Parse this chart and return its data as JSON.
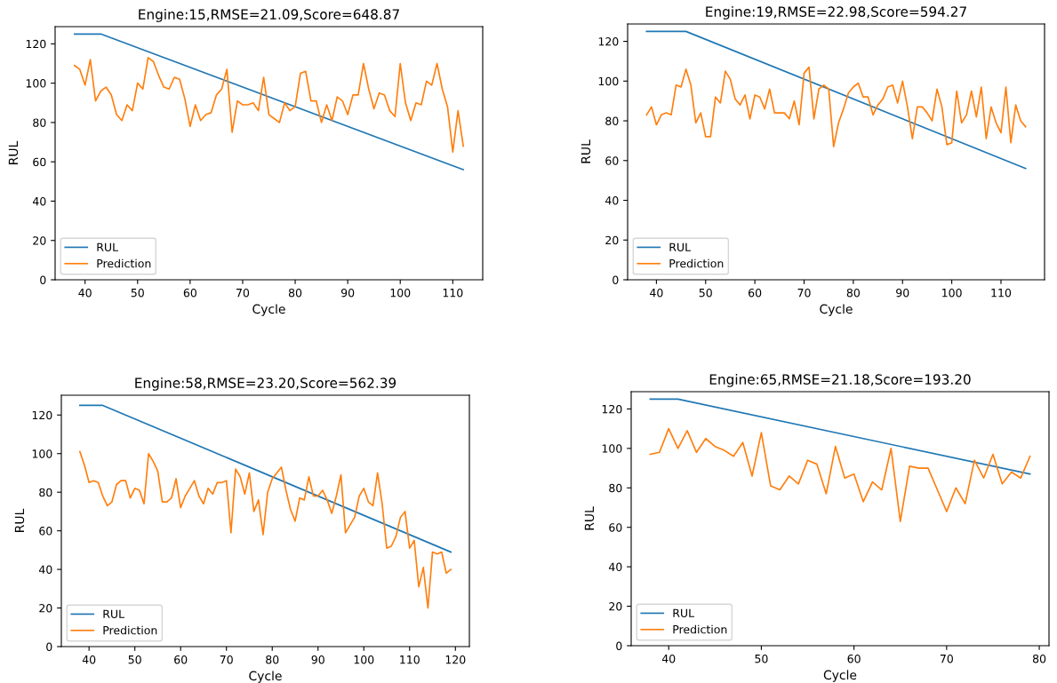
{
  "chart_data": [
    {
      "type": "line",
      "title": "Engine:15,RMSE=21.09,Score=648.87",
      "xlabel": "Cycle",
      "ylabel": "RUL",
      "xlim": [
        34.3,
        115.7
      ],
      "xticks": [
        40,
        50,
        60,
        70,
        80,
        90,
        100,
        110
      ],
      "ylim": [
        0,
        128.75
      ],
      "yticks": [
        0,
        20,
        40,
        60,
        80,
        100,
        120
      ],
      "legend": "bottom left",
      "grid": false,
      "series": [
        {
          "name": "RUL",
          "color": "#1f77b4",
          "x": [
            38,
            43,
            112
          ],
          "values": [
            125,
            125,
            56
          ]
        },
        {
          "name": "Prediction",
          "color": "#ff7f0e",
          "x": [
            38,
            39,
            40,
            41,
            42,
            43,
            44,
            45,
            46,
            47,
            48,
            49,
            50,
            51,
            52,
            53,
            54,
            55,
            56,
            57,
            58,
            59,
            60,
            61,
            62,
            63,
            64,
            65,
            66,
            67,
            68,
            69,
            70,
            71,
            72,
            73,
            74,
            75,
            76,
            77,
            78,
            79,
            80,
            81,
            82,
            83,
            84,
            85,
            86,
            87,
            88,
            89,
            90,
            91,
            92,
            93,
            94,
            95,
            96,
            97,
            98,
            99,
            100,
            101,
            102,
            103,
            104,
            105,
            106,
            107,
            108,
            109,
            110,
            111,
            112
          ],
          "values": [
            109,
            107,
            99,
            112,
            91,
            96,
            98,
            94,
            84,
            81,
            89,
            86,
            100,
            97,
            113,
            111,
            104,
            98,
            97,
            103,
            102,
            92,
            78,
            89,
            81,
            84,
            85,
            94,
            97,
            107,
            75,
            91,
            89,
            89,
            90,
            86,
            103,
            84,
            82,
            80,
            90,
            86,
            88,
            105,
            106,
            91,
            91,
            80,
            89,
            81,
            93,
            91,
            84,
            94,
            94,
            110,
            97,
            87,
            95,
            94,
            86,
            83,
            110,
            90,
            81,
            90,
            89,
            101,
            99,
            110,
            97,
            88,
            65,
            86,
            68
          ]
        }
      ]
    },
    {
      "type": "line",
      "title": "Engine:19,RMSE=22.98,Score=594.27",
      "xlabel": "Cycle",
      "ylabel": "RUL",
      "xlim": [
        34.15,
        118.85
      ],
      "xticks": [
        40,
        50,
        60,
        70,
        80,
        90,
        100,
        110
      ],
      "ylim": [
        0,
        128.75
      ],
      "yticks": [
        0,
        20,
        40,
        60,
        80,
        100,
        120
      ],
      "legend": "bottom left",
      "grid": false,
      "series": [
        {
          "name": "RUL",
          "color": "#1f77b4",
          "x": [
            38,
            46,
            115
          ],
          "values": [
            125,
            125,
            56
          ]
        },
        {
          "name": "Prediction",
          "color": "#ff7f0e",
          "x": [
            38,
            39,
            40,
            41,
            42,
            43,
            44,
            45,
            46,
            47,
            48,
            49,
            50,
            51,
            52,
            53,
            54,
            55,
            56,
            57,
            58,
            59,
            60,
            61,
            62,
            63,
            64,
            65,
            66,
            67,
            68,
            69,
            70,
            71,
            72,
            73,
            74,
            75,
            76,
            77,
            78,
            79,
            80,
            81,
            82,
            83,
            84,
            85,
            86,
            87,
            88,
            89,
            90,
            91,
            92,
            93,
            94,
            95,
            96,
            97,
            98,
            99,
            100,
            101,
            102,
            103,
            104,
            105,
            106,
            107,
            108,
            109,
            110,
            111,
            112,
            113,
            114,
            115
          ],
          "values": [
            83,
            87,
            78,
            83,
            84,
            83,
            98,
            97,
            106,
            98,
            79,
            84,
            72,
            72,
            92,
            89,
            105,
            101,
            91,
            88,
            93,
            81,
            93,
            92,
            86,
            96,
            84,
            84,
            84,
            81,
            90,
            78,
            104,
            107,
            81,
            96,
            98,
            96,
            67,
            79,
            86,
            94,
            97,
            99,
            92,
            92,
            83,
            88,
            91,
            97,
            98,
            89,
            100,
            87,
            71,
            87,
            87,
            84,
            80,
            96,
            87,
            68,
            69,
            95,
            79,
            83,
            95,
            82,
            97,
            71,
            87,
            79,
            74,
            97,
            69,
            88,
            80,
            77
          ]
        }
      ]
    },
    {
      "type": "line",
      "title": "Engine:58,RMSE=23.20,Score=562.39",
      "xlabel": "Cycle",
      "ylabel": "RUL",
      "xlim": [
        33.95,
        123.05
      ],
      "xticks": [
        40,
        50,
        60,
        70,
        80,
        90,
        100,
        110,
        120
      ],
      "ylim": [
        0,
        130.25
      ],
      "yticks": [
        0,
        20,
        40,
        60,
        80,
        100,
        120
      ],
      "legend": "bottom left",
      "grid": false,
      "series": [
        {
          "name": "RUL",
          "color": "#1f77b4",
          "x": [
            38,
            43,
            119
          ],
          "values": [
            125,
            125,
            49
          ]
        },
        {
          "name": "Prediction",
          "color": "#ff7f0e",
          "x": [
            38,
            39,
            40,
            41,
            42,
            43,
            44,
            45,
            46,
            47,
            48,
            49,
            50,
            51,
            52,
            53,
            54,
            55,
            56,
            57,
            58,
            59,
            60,
            61,
            62,
            63,
            64,
            65,
            66,
            67,
            68,
            69,
            70,
            71,
            72,
            73,
            74,
            75,
            76,
            77,
            78,
            79,
            80,
            81,
            82,
            83,
            84,
            85,
            86,
            87,
            88,
            89,
            90,
            91,
            92,
            93,
            94,
            95,
            96,
            97,
            98,
            99,
            100,
            101,
            102,
            103,
            104,
            105,
            106,
            107,
            108,
            109,
            110,
            111,
            112,
            113,
            114,
            115,
            116,
            117,
            118,
            119
          ],
          "values": [
            101,
            94,
            85,
            86,
            85,
            78,
            73,
            75,
            84,
            86,
            86,
            77,
            82,
            81,
            74,
            100,
            96,
            91,
            75,
            75,
            77,
            87,
            72,
            78,
            82,
            86,
            78,
            74,
            82,
            79,
            85,
            85,
            86,
            59,
            92,
            88,
            79,
            90,
            70,
            76,
            58,
            80,
            87,
            90,
            93,
            81,
            71,
            65,
            77,
            76,
            88,
            78,
            78,
            81,
            76,
            69,
            78,
            89,
            59,
            63,
            67,
            78,
            82,
            75,
            73,
            90,
            74,
            51,
            52,
            57,
            67,
            70,
            51,
            55,
            31,
            41,
            20,
            49,
            48,
            49,
            38,
            40
          ]
        }
      ]
    },
    {
      "type": "line",
      "title": "Engine:65,RMSE=21.18,Score=193.20",
      "xlabel": "Cycle",
      "ylabel": "RUL",
      "xlim": [
        35.95,
        81.05
      ],
      "xticks": [
        40,
        50,
        60,
        70,
        80
      ],
      "ylim": [
        0,
        128.75
      ],
      "yticks": [
        0,
        20,
        40,
        60,
        80,
        100,
        120
      ],
      "legend": "bottom left",
      "grid": false,
      "series": [
        {
          "name": "RUL",
          "color": "#1f77b4",
          "x": [
            38,
            41,
            79
          ],
          "values": [
            125,
            125,
            87
          ]
        },
        {
          "name": "Prediction",
          "color": "#ff7f0e",
          "x": [
            38,
            39,
            40,
            41,
            42,
            43,
            44,
            45,
            46,
            47,
            48,
            49,
            50,
            51,
            52,
            53,
            54,
            55,
            56,
            57,
            58,
            59,
            60,
            61,
            62,
            63,
            64,
            65,
            66,
            67,
            68,
            69,
            70,
            71,
            72,
            73,
            74,
            75,
            76,
            77,
            78,
            79
          ],
          "values": [
            97,
            98,
            110,
            100,
            109,
            98,
            105,
            101,
            99,
            96,
            103,
            86,
            108,
            81,
            79,
            86,
            82,
            94,
            92,
            77,
            101,
            85,
            87,
            73,
            83,
            79,
            100,
            63,
            91,
            90,
            90,
            79,
            68,
            80,
            72,
            94,
            85,
            97,
            82,
            88,
            85,
            96
          ]
        }
      ]
    }
  ]
}
